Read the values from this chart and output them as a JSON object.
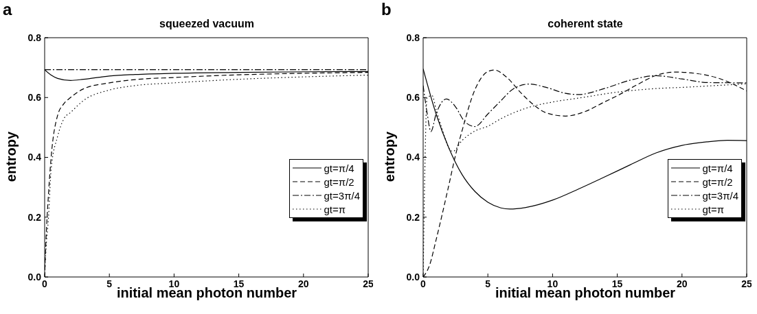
{
  "chart_data": [
    {
      "type": "line",
      "title": "squeezed vacuum",
      "xlabel": "initial mean photon number",
      "ylabel": "entropy",
      "annotations": [
        "a"
      ],
      "xlim": [
        0,
        25
      ],
      "xticks": [
        0,
        5,
        10,
        15,
        20,
        25
      ],
      "ylim": [
        0,
        0.8
      ],
      "yticks": [
        {
          "value": 0,
          "label": "0.0"
        },
        0.2,
        0.4,
        0.6,
        0.8
      ],
      "grid": false,
      "legend": "right",
      "marker": "none",
      "series": [
        {
          "name": "gt=π/4",
          "color": "#000000",
          "line_style": "solid",
          "x": [
            0,
            0.5,
            1,
            2,
            3,
            5,
            7,
            10,
            15,
            20,
            25
          ],
          "values": [
            0.693,
            0.675,
            0.664,
            0.657,
            0.661,
            0.672,
            0.677,
            0.681,
            0.684,
            0.686,
            0.687
          ]
        },
        {
          "name": "gt=π/2",
          "color": "#000000",
          "line_style": "dashed",
          "x": [
            0,
            0.1,
            0.3,
            0.5,
            1,
            1.5,
            2,
            3,
            5,
            7,
            10,
            15,
            20,
            25
          ],
          "values": [
            0,
            0.12,
            0.28,
            0.4,
            0.54,
            0.58,
            0.6,
            0.629,
            0.649,
            0.66,
            0.667,
            0.676,
            0.681,
            0.684
          ]
        },
        {
          "name": "gt=3π/4",
          "color": "#000000",
          "line_style": "dashdot",
          "x": [
            0,
            5,
            10,
            15,
            20,
            25
          ],
          "values": [
            0.693,
            0.693,
            0.693,
            0.693,
            0.693,
            0.693
          ]
        },
        {
          "name": "gt=π",
          "color": "#000000",
          "line_style": "dotted",
          "x": [
            0,
            0.1,
            0.3,
            0.5,
            1,
            1.5,
            2,
            3,
            5,
            7,
            10,
            15,
            20,
            25
          ],
          "values": [
            0,
            0.09,
            0.2,
            0.36,
            0.47,
            0.53,
            0.55,
            0.59,
            0.625,
            0.64,
            0.649,
            0.661,
            0.669,
            0.675
          ]
        }
      ]
    },
    {
      "type": "line",
      "title": "coherent state",
      "xlabel": "initial mean photon number",
      "ylabel": "entropy",
      "annotations": [
        "b"
      ],
      "xlim": [
        0,
        25
      ],
      "xticks": [
        0,
        5,
        10,
        15,
        20,
        25
      ],
      "ylim": [
        0,
        0.8
      ],
      "yticks": [
        {
          "value": 0,
          "label": "0.0"
        },
        0.2,
        0.4,
        0.6,
        0.8
      ],
      "grid": false,
      "legend": "right",
      "marker": "none",
      "series": [
        {
          "name": "gt=π/4",
          "color": "#000000",
          "line_style": "solid",
          "x": [
            0,
            1,
            2,
            3,
            4,
            5,
            6,
            6.7,
            8,
            10,
            12,
            14,
            16,
            18,
            20,
            22,
            23.5,
            25
          ],
          "values": [
            0.696,
            0.545,
            0.43,
            0.343,
            0.286,
            0.25,
            0.231,
            0.227,
            0.233,
            0.257,
            0.294,
            0.334,
            0.375,
            0.415,
            0.44,
            0.452,
            0.457,
            0.456
          ]
        },
        {
          "name": "gt=π/2",
          "color": "#000000",
          "line_style": "dashed",
          "x": [
            0,
            0.5,
            1,
            2,
            2.5,
            3,
            4,
            5,
            5.5,
            6.5,
            7.5,
            8.5,
            9.5,
            11,
            12.5,
            14,
            15,
            16.5,
            18,
            19.5,
            21,
            23,
            25
          ],
          "values": [
            0,
            0.04,
            0.124,
            0.31,
            0.407,
            0.488,
            0.626,
            0.687,
            0.692,
            0.666,
            0.618,
            0.577,
            0.549,
            0.538,
            0.553,
            0.585,
            0.606,
            0.642,
            0.674,
            0.685,
            0.681,
            0.662,
            0.622
          ]
        },
        {
          "name": "gt=3π/4",
          "color": "#000000",
          "line_style": "dashdot",
          "x": [
            0,
            0.3,
            0.6,
            1,
            1.8,
            2.5,
            3.2,
            4,
            5,
            6,
            7,
            8.2,
            9.5,
            11,
            12,
            14,
            16,
            18,
            20,
            22,
            25
          ],
          "values": [
            0.64,
            0.55,
            0.486,
            0.545,
            0.595,
            0.569,
            0.52,
            0.503,
            0.545,
            0.589,
            0.63,
            0.645,
            0.634,
            0.614,
            0.61,
            0.63,
            0.658,
            0.673,
            0.662,
            0.65,
            0.649
          ]
        },
        {
          "name": "gt=π",
          "color": "#000000",
          "line_style": "dotted",
          "x": [
            0,
            0.15,
            0.3,
            0.7,
            1,
            1.5,
            2,
            2.3,
            3,
            4,
            5,
            6,
            8,
            10,
            12,
            15,
            18,
            20,
            25
          ],
          "values": [
            0,
            0.4,
            0.6,
            0.606,
            0.56,
            0.49,
            0.43,
            0.42,
            0.456,
            0.488,
            0.504,
            0.529,
            0.565,
            0.585,
            0.598,
            0.618,
            0.63,
            0.634,
            0.646
          ]
        }
      ]
    }
  ]
}
